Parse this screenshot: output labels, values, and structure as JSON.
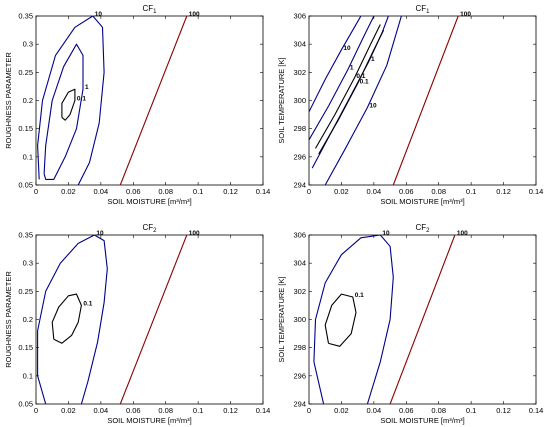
{
  "chart_data": [
    {
      "type": "contour",
      "title": "CF",
      "title_subscript": "1",
      "xlabel": "SOIL MOISTURE [m³/m³]",
      "ylabel": "ROUGHNESS PARAMETER",
      "xlim": [
        0,
        0.14
      ],
      "ylim": [
        0.05,
        0.35
      ],
      "xticks": [
        "0",
        "0.02",
        "0.04",
        "0.06",
        "0.08",
        "0.1",
        "0.12",
        "0.14"
      ],
      "yticks": [
        "0.05",
        "0.1",
        "0.15",
        "0.2",
        "0.25",
        "0.3",
        "0.35"
      ],
      "contours": [
        {
          "level": "10",
          "color": "#00008b",
          "points": [
            [
              0.002,
              0.06
            ],
            [
              0.001,
              0.12
            ],
            [
              0.004,
              0.2
            ],
            [
              0.012,
              0.28
            ],
            [
              0.024,
              0.33
            ],
            [
              0.035,
              0.35
            ],
            [
              0.041,
              0.33
            ],
            [
              0.042,
              0.25
            ],
            [
              0.039,
              0.16
            ],
            [
              0.033,
              0.09
            ],
            [
              0.026,
              0.05
            ]
          ]
        },
        {
          "level": "1",
          "color": "#00008b",
          "points": [
            [
              0.005,
              0.07
            ],
            [
              0.006,
              0.12
            ],
            [
              0.01,
              0.2
            ],
            [
              0.017,
              0.26
            ],
            [
              0.025,
              0.3
            ],
            [
              0.029,
              0.28
            ],
            [
              0.029,
              0.22
            ],
            [
              0.025,
              0.15
            ],
            [
              0.018,
              0.1
            ],
            [
              0.011,
              0.06
            ],
            [
              0.006,
              0.06
            ],
            [
              0.005,
              0.07
            ]
          ]
        },
        {
          "level": "0.1",
          "color": "#000000",
          "points": [
            [
              0.016,
              0.17
            ],
            [
              0.016,
              0.195
            ],
            [
              0.02,
              0.215
            ],
            [
              0.024,
              0.22
            ],
            [
              0.024,
              0.2
            ],
            [
              0.021,
              0.175
            ],
            [
              0.018,
              0.165
            ],
            [
              0.016,
              0.17
            ]
          ]
        },
        {
          "level": "100",
          "color": "#8b0000",
          "points": [
            [
              0.052,
              0.05
            ],
            [
              0.093,
              0.35
            ]
          ]
        }
      ]
    },
    {
      "type": "contour",
      "title": "CF",
      "title_subscript": "1",
      "xlabel": "SOIL MOISTURE [m³/m³]",
      "ylabel": "SOIL TEMPERATURE [K]",
      "xlim": [
        0,
        0.14
      ],
      "ylim": [
        294,
        306
      ],
      "xticks": [
        "0",
        "0.02",
        "0.04",
        "0.06",
        "0.08",
        "0.1",
        "0.12",
        "0.14"
      ],
      "yticks": [
        "294",
        "296",
        "298",
        "300",
        "302",
        "304",
        "306"
      ],
      "contours": [
        {
          "level": "10",
          "color": "#00008b",
          "points": [
            [
              0,
              299.2
            ],
            [
              0.01,
              301.5
            ],
            [
              0.02,
              303.6
            ],
            [
              0.028,
              305.2
            ],
            [
              0.032,
              306
            ]
          ]
        },
        {
          "level": "10",
          "color": "#00008b",
          "points": [
            [
              0.01,
              294
            ],
            [
              0.022,
              296.5
            ],
            [
              0.036,
              299.5
            ],
            [
              0.048,
              302.5
            ],
            [
              0.057,
              306
            ]
          ]
        },
        {
          "level": "1",
          "color": "#00008b",
          "points": [
            [
              0,
              297.2
            ],
            [
              0.012,
              299.6
            ],
            [
              0.024,
              302.2
            ],
            [
              0.034,
              304.6
            ],
            [
              0.04,
              306
            ]
          ]
        },
        {
          "level": "1",
          "color": "#00008b",
          "points": [
            [
              0.002,
              295.2
            ],
            [
              0.014,
              297.8
            ],
            [
              0.026,
              300.4
            ],
            [
              0.037,
              302.8
            ],
            [
              0.045,
              304.8
            ],
            [
              0.049,
              306
            ]
          ]
        },
        {
          "level": "0.1",
          "color": "#000000",
          "points": [
            [
              0.004,
              296.6
            ],
            [
              0.016,
              299.0
            ],
            [
              0.028,
              301.6
            ],
            [
              0.038,
              304.0
            ],
            [
              0.044,
              305.4
            ]
          ]
        },
        {
          "level": "0.1",
          "color": "#000000",
          "points": [
            [
              0.006,
              296.2
            ],
            [
              0.018,
              298.6
            ],
            [
              0.03,
              301.2
            ],
            [
              0.04,
              303.6
            ],
            [
              0.046,
              305.0
            ]
          ]
        },
        {
          "level": "100",
          "color": "#8b0000",
          "points": [
            [
              0.052,
              294
            ],
            [
              0.092,
              306
            ]
          ]
        }
      ]
    },
    {
      "type": "contour",
      "title": "CF",
      "title_subscript": "2",
      "xlabel": "SOIL MOISTURE [m³/m³]",
      "ylabel": "ROUGHNESS PARAMETER",
      "xlim": [
        0,
        0.14
      ],
      "ylim": [
        0.05,
        0.35
      ],
      "xticks": [
        "0",
        "0.02",
        "0.04",
        "0.06",
        "0.08",
        "0.1",
        "0.12",
        "0.14"
      ],
      "yticks": [
        "0.05",
        "0.1",
        "0.15",
        "0.2",
        "0.25",
        "0.3",
        "0.35"
      ],
      "contours": [
        {
          "level": "10",
          "color": "#00008b",
          "points": [
            [
              0.006,
              0.05
            ],
            [
              0.001,
              0.1
            ],
            [
              0.001,
              0.18
            ],
            [
              0.006,
              0.25
            ],
            [
              0.015,
              0.3
            ],
            [
              0.026,
              0.335
            ],
            [
              0.036,
              0.35
            ],
            [
              0.042,
              0.34
            ],
            [
              0.044,
              0.29
            ],
            [
              0.042,
              0.23
            ],
            [
              0.038,
              0.16
            ],
            [
              0.032,
              0.09
            ],
            [
              0.028,
              0.05
            ]
          ]
        },
        {
          "level": "0.1",
          "color": "#000000",
          "points": [
            [
              0.011,
              0.165
            ],
            [
              0.01,
              0.195
            ],
            [
              0.014,
              0.222
            ],
            [
              0.02,
              0.242
            ],
            [
              0.025,
              0.245
            ],
            [
              0.028,
              0.225
            ],
            [
              0.026,
              0.195
            ],
            [
              0.022,
              0.172
            ],
            [
              0.016,
              0.158
            ],
            [
              0.011,
              0.165
            ]
          ]
        },
        {
          "level": "100",
          "color": "#8b0000",
          "points": [
            [
              0.052,
              0.05
            ],
            [
              0.093,
              0.35
            ]
          ]
        }
      ]
    },
    {
      "type": "contour",
      "title": "CF",
      "title_subscript": "2",
      "xlabel": "SOIL MOISTURE [m³/m³]",
      "ylabel": "SOIL TEMPERATURE [K]",
      "xlim": [
        0,
        0.14
      ],
      "ylim": [
        294,
        306
      ],
      "xticks": [
        "0",
        "0.02",
        "0.04",
        "0.06",
        "0.08",
        "0.1",
        "0.12",
        "0.14"
      ],
      "yticks": [
        "294",
        "296",
        "298",
        "300",
        "302",
        "304",
        "306"
      ],
      "contours": [
        {
          "level": "10",
          "color": "#00008b",
          "points": [
            [
              0.009,
              294
            ],
            [
              0.003,
              297
            ],
            [
              0.004,
              300
            ],
            [
              0.01,
              302.6
            ],
            [
              0.02,
              304.6
            ],
            [
              0.032,
              305.8
            ],
            [
              0.044,
              306
            ],
            [
              0.05,
              305.2
            ],
            [
              0.052,
              303
            ],
            [
              0.05,
              300
            ],
            [
              0.044,
              297
            ],
            [
              0.036,
              294
            ]
          ]
        },
        {
          "level": "0.1",
          "color": "#000000",
          "points": [
            [
              0.012,
              298.3
            ],
            [
              0.01,
              299.6
            ],
            [
              0.014,
              301.0
            ],
            [
              0.02,
              301.8
            ],
            [
              0.027,
              301.6
            ],
            [
              0.029,
              300.5
            ],
            [
              0.026,
              299.0
            ],
            [
              0.019,
              298.1
            ],
            [
              0.012,
              298.3
            ]
          ]
        },
        {
          "level": "100",
          "color": "#8b0000",
          "points": [
            [
              0.05,
              294
            ],
            [
              0.09,
              306
            ]
          ]
        }
      ]
    }
  ]
}
